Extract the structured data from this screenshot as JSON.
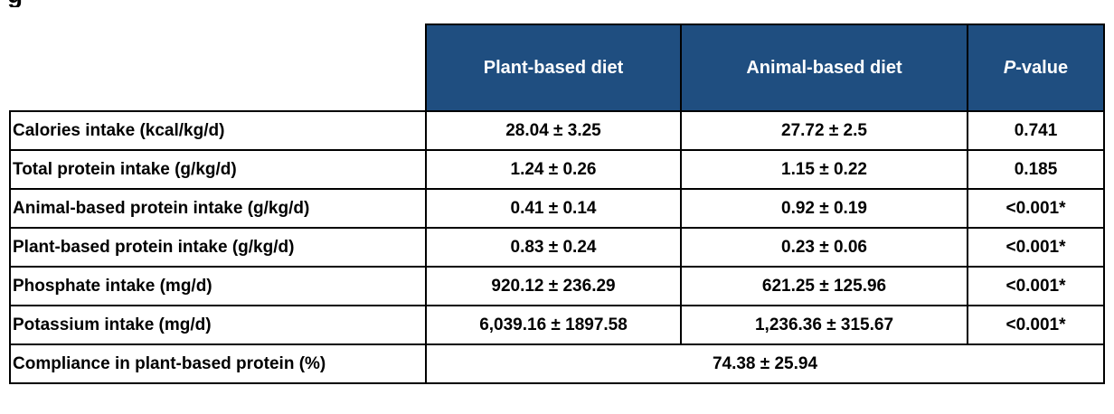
{
  "title_fragment": "g",
  "table": {
    "headers": {
      "corner": "",
      "plant": "Plant-based diet",
      "animal": "Animal-based diet",
      "p_italic": "P",
      "p_rest": "-value"
    },
    "rows": [
      {
        "label": "Calories intake (kcal/kg/d)",
        "plant": "28.04 ± 3.25",
        "animal": "27.72 ± 2.5",
        "p": "0.741"
      },
      {
        "label": "Total protein intake (g/kg/d)",
        "plant": "1.24 ± 0.26",
        "animal": "1.15 ± 0.22",
        "p": "0.185"
      },
      {
        "label": "Animal-based protein intake (g/kg/d)",
        "plant": "0.41 ± 0.14",
        "animal": "0.92 ± 0.19",
        "p": "<0.001*"
      },
      {
        "label": "Plant-based protein intake (g/kg/d)",
        "plant": "0.83 ± 0.24",
        "animal": "0.23 ± 0.06",
        "p": "<0.001*"
      },
      {
        "label": "Phosphate intake (mg/d)",
        "plant": "920.12 ± 236.29",
        "animal": "621.25 ± 125.96",
        "p": "<0.001*"
      },
      {
        "label": "Potassium intake (mg/d)",
        "plant": "6,039.16 ± 1897.58",
        "animal": "1,236.36 ± 315.67",
        "p": "<0.001*"
      }
    ],
    "compliance": {
      "label": "Compliance in plant-based protein (%)",
      "value": "74.38 ± 25.94"
    }
  },
  "colors": {
    "header_bg": "#1f4e80",
    "header_text": "#ffffff",
    "border": "#000000"
  }
}
